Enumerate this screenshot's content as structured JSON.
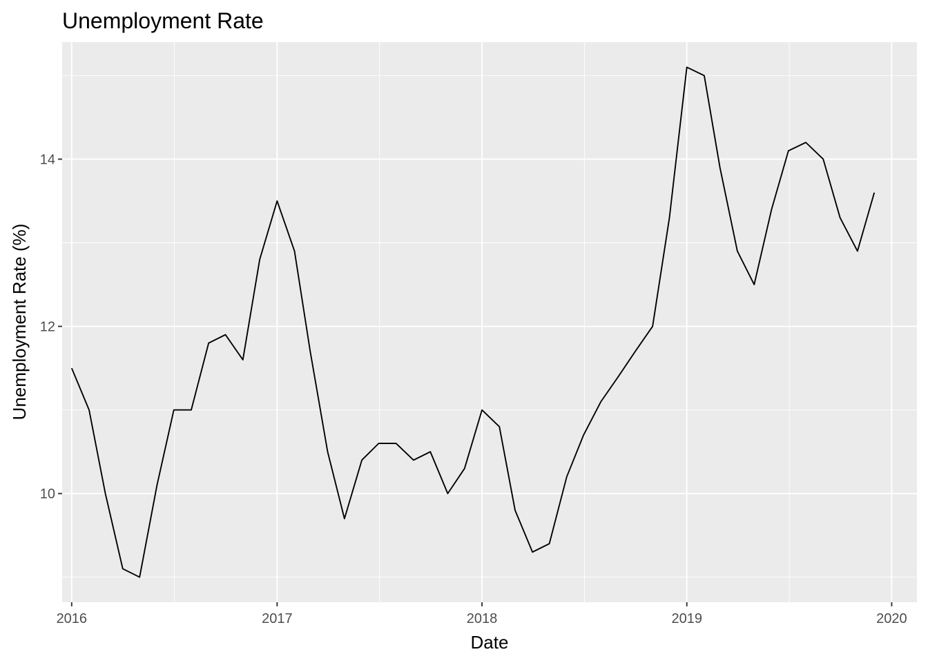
{
  "chart_data": {
    "type": "line",
    "title": "Unemployment Rate",
    "xlabel": "Date",
    "ylabel": "Unemployment Rate (%)",
    "x_type": "date",
    "xlim": [
      "2015-12-15",
      "2020-02-15"
    ],
    "ylim": [
      8.7,
      15.4
    ],
    "x_ticks": [
      "2016-01-01",
      "2017-01-01",
      "2018-01-01",
      "2019-01-01",
      "2020-01-01"
    ],
    "x_tick_labels": [
      "2016",
      "2017",
      "2018",
      "2019",
      "2020"
    ],
    "y_ticks": [
      10,
      12,
      14
    ],
    "y_tick_labels": [
      "10",
      "12",
      "14"
    ],
    "y_minor_ticks": [
      9,
      11,
      13,
      15
    ],
    "grid": true,
    "legend": "none",
    "line_color": "#000000",
    "series": [
      {
        "x": [
          "2016-01-01",
          "2016-02-01",
          "2016-03-01",
          "2016-04-01",
          "2016-05-01",
          "2016-06-01",
          "2016-07-01",
          "2016-08-01",
          "2016-09-01",
          "2016-10-01",
          "2016-11-01",
          "2016-12-01",
          "2017-01-01",
          "2017-02-01",
          "2017-03-01",
          "2017-04-01",
          "2017-05-01",
          "2017-06-01",
          "2017-07-01",
          "2017-08-01",
          "2017-09-01",
          "2017-10-01",
          "2017-11-01",
          "2017-12-01",
          "2018-01-01",
          "2018-02-01",
          "2018-03-01",
          "2018-04-01",
          "2018-05-01",
          "2018-06-01",
          "2018-07-01",
          "2018-08-01",
          "2018-09-01",
          "2018-10-01",
          "2018-11-01",
          "2018-12-01",
          "2019-01-01",
          "2019-02-01",
          "2019-03-01",
          "2019-04-01",
          "2019-05-01",
          "2019-06-01",
          "2019-07-01",
          "2019-08-01",
          "2019-09-01",
          "2019-10-01",
          "2019-11-01",
          "2019-12-01"
        ],
        "values": [
          11.5,
          11.0,
          10.0,
          9.1,
          9.0,
          10.1,
          11.0,
          11.0,
          11.8,
          11.9,
          11.6,
          12.8,
          13.5,
          12.9,
          11.7,
          10.5,
          9.7,
          10.4,
          10.6,
          10.6,
          10.4,
          10.5,
          10.0,
          10.3,
          11.0,
          10.8,
          9.8,
          9.3,
          9.4,
          10.2,
          10.7,
          11.1,
          11.4,
          11.7,
          12.0,
          13.3,
          15.1,
          15.0,
          13.9,
          12.9,
          12.5,
          13.4,
          14.1,
          14.2,
          14.0,
          13.3,
          12.9,
          13.6
        ]
      }
    ]
  }
}
